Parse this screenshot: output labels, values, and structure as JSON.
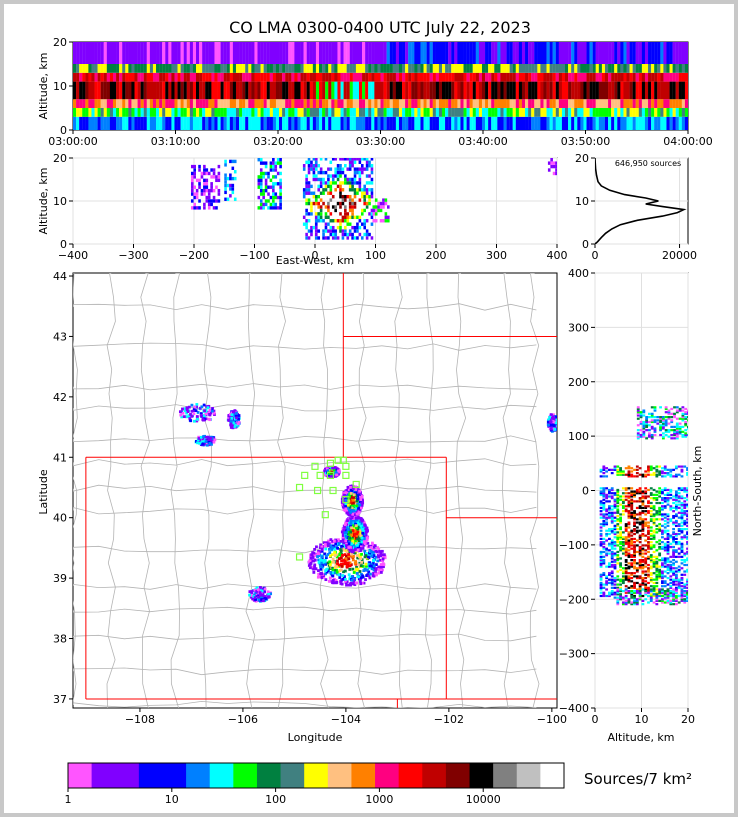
{
  "title": "CO LMA 0300-0400 UTC July 22, 2023",
  "colors": {
    "colormap": [
      "#ff55ff",
      "#8000ff",
      "#8000ff",
      "#0000ff",
      "#0000ff",
      "#0080ff",
      "#00ffff",
      "#00ff00",
      "#008040",
      "#408080",
      "#ffff00",
      "#ffc080",
      "#ff8000",
      "#ff0080",
      "#ff0000",
      "#c00000",
      "#800000",
      "#000000",
      "#808080",
      "#c0c0c0",
      "#ffffff"
    ],
    "boundary": "#ff0000",
    "county": "#b4b4b4",
    "station": "#80ff40"
  },
  "chart_data": [
    {
      "id": "time-height",
      "type": "heatmap",
      "ylabel": "Altitude, km",
      "ylim": [
        0,
        20
      ],
      "yticks": [
        "0",
        "10",
        "20"
      ],
      "xticks": [
        "03:00:00",
        "03:10:00",
        "03:20:00",
        "03:30:00",
        "03:40:00",
        "03:50:00",
        "04:00:00"
      ],
      "xlim": [
        "03:00:00",
        "04:00:00"
      ]
    },
    {
      "id": "ew-altitude",
      "type": "heatmap",
      "xlabel": "East-West, km",
      "ylabel": "Altitude, km",
      "xlim": [
        -400,
        400
      ],
      "ylim": [
        0,
        20
      ],
      "xticks": [
        "−400",
        "−300",
        "−200",
        "−100",
        "0",
        "100",
        "200",
        "300",
        "400"
      ],
      "yticks": [
        "0",
        "10",
        "20"
      ]
    },
    {
      "id": "altitude-histogram",
      "type": "line",
      "annotation": "646,950 sources",
      "xlim": [
        0,
        22000
      ],
      "ylim": [
        0,
        20
      ],
      "xticks": [
        "0",
        "20000"
      ],
      "yticks": [
        "0",
        "10",
        "20"
      ],
      "profile": [
        [
          0,
          0
        ],
        [
          600,
          0.5
        ],
        [
          1500,
          1.5
        ],
        [
          2500,
          2.5
        ],
        [
          4000,
          3.5
        ],
        [
          6000,
          4.5
        ],
        [
          10000,
          5.5
        ],
        [
          16000,
          6.5
        ],
        [
          19500,
          7.3
        ],
        [
          21000,
          8.0
        ],
        [
          16000,
          8.7
        ],
        [
          12000,
          9.3
        ],
        [
          15000,
          10.0
        ],
        [
          12000,
          10.7
        ],
        [
          7000,
          11.5
        ],
        [
          3500,
          12.5
        ],
        [
          1500,
          13.5
        ],
        [
          700,
          14.5
        ],
        [
          350,
          16
        ],
        [
          150,
          17.5
        ],
        [
          50,
          19
        ],
        [
          0,
          20
        ]
      ]
    },
    {
      "id": "plan-view",
      "type": "heatmap",
      "xlabel": "Longitude",
      "ylabel": "Latitude",
      "xlim": [
        -109.3,
        -99.9
      ],
      "ylim": [
        36.85,
        44.05
      ],
      "xticks": [
        "−108",
        "−106",
        "−104",
        "−102",
        "−100"
      ],
      "yticks": [
        "37",
        "38",
        "39",
        "40",
        "41",
        "42",
        "43",
        "44"
      ],
      "stations": [
        [
          -104.6,
          40.85
        ],
        [
          -104.3,
          40.9
        ],
        [
          -104.15,
          40.95
        ],
        [
          -104.0,
          40.85
        ],
        [
          -104.05,
          40.95
        ],
        [
          -104.8,
          40.7
        ],
        [
          -104.5,
          40.7
        ],
        [
          -104.3,
          40.7
        ],
        [
          -104.0,
          40.7
        ],
        [
          -103.8,
          40.55
        ],
        [
          -104.9,
          40.5
        ],
        [
          -104.55,
          40.45
        ],
        [
          -104.25,
          40.45
        ],
        [
          -104.0,
          40.3
        ],
        [
          -104.4,
          40.05
        ],
        [
          -104.9,
          39.35
        ]
      ]
    },
    {
      "id": "ns-altitude",
      "type": "heatmap",
      "xlabel": "Altitude, km",
      "ylabel": "North-South, km",
      "xlim": [
        0,
        20
      ],
      "ylim": [
        -400,
        400
      ],
      "xticks": [
        "0",
        "10",
        "20"
      ],
      "yticks": [
        "−400",
        "−300",
        "−200",
        "−100",
        "0",
        "100",
        "200",
        "300",
        "400"
      ]
    },
    {
      "id": "colorbar",
      "type": "table",
      "label": "Sources/7 km²",
      "ticks": [
        "1",
        "10",
        "100",
        "1000",
        "10000"
      ],
      "scale": "log"
    }
  ]
}
